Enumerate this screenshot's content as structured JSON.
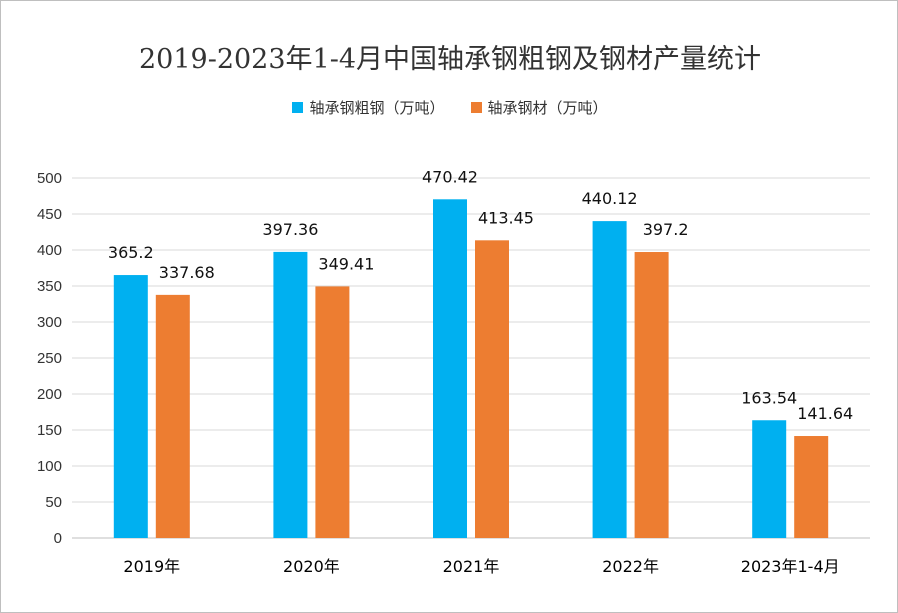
{
  "chart_data": {
    "type": "bar",
    "title": "2019-2023年1-4月中国轴承钢粗钢及钢材产量统计",
    "categories": [
      "2019年",
      "2020年",
      "2021年",
      "2022年",
      "2023年1-4月"
    ],
    "series": [
      {
        "name": "轴承钢粗钢（万吨）",
        "color": "#00B0F0",
        "values": [
          365.2,
          397.36,
          470.42,
          440.12,
          163.54
        ]
      },
      {
        "name": "轴承钢材（万吨）",
        "color": "#ED7D31",
        "values": [
          337.68,
          349.41,
          413.45,
          397.2,
          141.64
        ]
      }
    ],
    "ylim": [
      0,
      500
    ],
    "yticks": [
      0,
      50,
      100,
      150,
      200,
      250,
      300,
      350,
      400,
      450,
      500
    ],
    "grid": true,
    "legend": "top",
    "xlabel": "",
    "ylabel": ""
  }
}
